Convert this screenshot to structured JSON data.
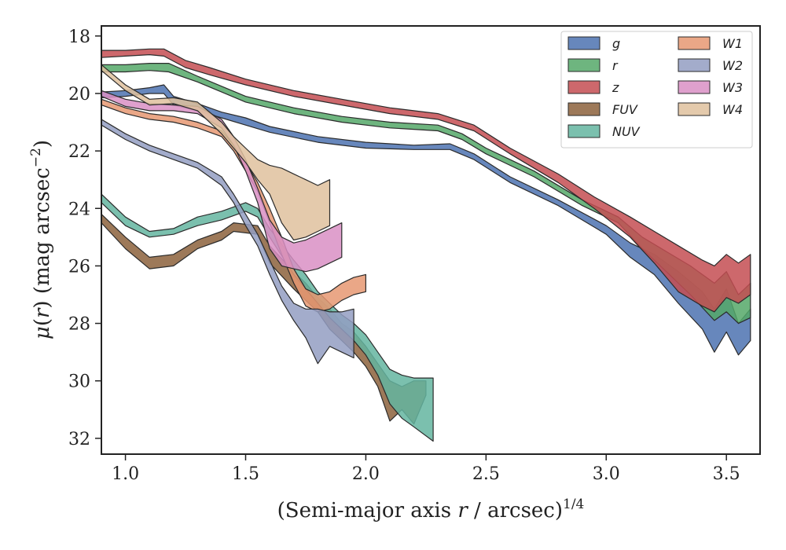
{
  "chart_data": {
    "type": "area",
    "xlabel": "(Semi-major axis r / arcsec)",
    "xlabel_parts": {
      "pre": "(Semi-major axis ",
      "var": "r",
      "post": " / arcsec)",
      "sup": "1/4"
    },
    "ylabel_parts": {
      "mu": "μ",
      "open": "(",
      "var": "r",
      "close": ")",
      "unit": " (mag arcsec",
      "sup": "−2",
      "end": ")"
    },
    "xlim": [
      0.9,
      3.64
    ],
    "ylim": [
      32.55,
      17.65
    ],
    "y_inverted": true,
    "x_ticks": [
      "1.0",
      "1.5",
      "2.0",
      "2.5",
      "3.0",
      "3.5"
    ],
    "y_ticks": [
      "18",
      "20",
      "22",
      "24",
      "26",
      "28",
      "30",
      "32"
    ],
    "grid": false,
    "legend": {
      "position": "top-right",
      "columns": 2
    },
    "series": [
      {
        "name": "g",
        "color": "#4c72b0",
        "x": [
          0.9,
          1.0,
          1.1,
          1.16,
          1.2,
          1.3,
          1.4,
          1.5,
          1.6,
          1.8,
          2.0,
          2.2,
          2.35,
          2.45,
          2.6,
          2.8,
          3.0,
          3.1,
          3.2,
          3.3,
          3.4,
          3.45,
          3.5,
          3.55,
          3.6
        ],
        "lower": [
          19.95,
          19.9,
          19.8,
          19.7,
          20.1,
          20.35,
          20.65,
          20.85,
          21.15,
          21.5,
          21.7,
          21.8,
          21.75,
          22.1,
          22.9,
          23.7,
          24.6,
          25.2,
          25.6,
          26.2,
          26.9,
          27.5,
          26.8,
          28.0,
          27.5
        ],
        "upper": [
          20.15,
          20.1,
          20.0,
          20.0,
          20.4,
          20.6,
          20.85,
          21.1,
          21.35,
          21.7,
          21.9,
          21.95,
          21.95,
          22.3,
          23.1,
          23.9,
          24.9,
          25.7,
          26.3,
          27.3,
          28.2,
          29.0,
          28.3,
          29.1,
          28.6
        ]
      },
      {
        "name": "r",
        "color": "#55a868",
        "x": [
          0.9,
          1.0,
          1.1,
          1.18,
          1.3,
          1.4,
          1.5,
          1.7,
          1.9,
          2.1,
          2.3,
          2.4,
          2.5,
          2.7,
          2.9,
          3.05,
          3.15,
          3.25,
          3.35,
          3.45,
          3.5,
          3.55,
          3.6
        ],
        "lower": [
          19.0,
          19.0,
          18.95,
          18.95,
          19.4,
          19.75,
          20.1,
          20.5,
          20.8,
          21.0,
          21.1,
          21.4,
          21.9,
          22.7,
          23.7,
          24.3,
          25.0,
          25.5,
          26.0,
          26.6,
          26.2,
          27.0,
          26.6
        ],
        "upper": [
          19.25,
          19.25,
          19.2,
          19.25,
          19.6,
          19.95,
          20.3,
          20.7,
          21.0,
          21.2,
          21.3,
          21.6,
          22.1,
          22.9,
          23.9,
          24.5,
          25.4,
          26.2,
          27.0,
          27.9,
          27.6,
          28.0,
          27.8
        ]
      },
      {
        "name": "z",
        "color": "#c44e52",
        "x": [
          0.9,
          1.0,
          1.1,
          1.16,
          1.25,
          1.35,
          1.5,
          1.7,
          1.9,
          2.1,
          2.3,
          2.45,
          2.6,
          2.8,
          2.95,
          3.1,
          3.2,
          3.3,
          3.4,
          3.45,
          3.5,
          3.55,
          3.6
        ],
        "lower": [
          18.5,
          18.5,
          18.45,
          18.45,
          18.85,
          19.1,
          19.5,
          19.9,
          20.2,
          20.5,
          20.7,
          21.1,
          21.9,
          22.8,
          23.6,
          24.3,
          24.8,
          25.3,
          25.8,
          26.0,
          25.6,
          25.9,
          25.6
        ],
        "upper": [
          18.75,
          18.7,
          18.65,
          18.7,
          19.1,
          19.35,
          19.7,
          20.1,
          20.4,
          20.7,
          20.9,
          21.3,
          22.1,
          23.1,
          24.0,
          25.0,
          25.9,
          26.9,
          27.4,
          27.6,
          27.1,
          27.3,
          27.0
        ]
      },
      {
        "name": "FUV",
        "color": "#8c613c",
        "x": [
          0.9,
          1.0,
          1.1,
          1.2,
          1.3,
          1.4,
          1.45,
          1.55,
          1.6,
          1.7,
          1.75,
          1.8,
          1.85,
          1.9,
          1.95,
          2.0,
          2.05,
          2.1,
          2.15,
          2.2,
          2.25
        ],
        "lower": [
          24.2,
          25.0,
          25.7,
          25.6,
          25.1,
          24.8,
          24.5,
          24.6,
          25.3,
          26.2,
          26.6,
          27.1,
          27.5,
          28.0,
          28.3,
          28.8,
          29.4,
          30.0,
          30.2,
          30.0,
          30.0
        ],
        "upper": [
          24.5,
          25.4,
          26.1,
          26.0,
          25.4,
          25.1,
          24.8,
          24.9,
          25.9,
          26.8,
          27.2,
          27.6,
          28.2,
          28.6,
          29.0,
          29.5,
          30.2,
          31.4,
          31.0,
          31.5,
          30.5
        ]
      },
      {
        "name": "NUV",
        "color": "#64b5a0",
        "x": [
          0.9,
          1.0,
          1.1,
          1.2,
          1.3,
          1.4,
          1.5,
          1.55,
          1.6,
          1.7,
          1.75,
          1.8,
          1.85,
          1.9,
          1.95,
          2.0,
          2.05,
          2.1,
          2.15,
          2.2,
          2.28
        ],
        "lower": [
          23.5,
          24.3,
          24.8,
          24.7,
          24.3,
          24.1,
          23.8,
          24.0,
          24.7,
          25.8,
          26.3,
          26.9,
          27.3,
          27.7,
          28.0,
          28.4,
          29.0,
          29.6,
          29.8,
          29.9,
          29.9
        ],
        "upper": [
          23.8,
          24.6,
          25.0,
          24.9,
          24.6,
          24.4,
          24.1,
          24.3,
          25.0,
          26.3,
          26.8,
          27.3,
          27.8,
          28.2,
          28.6,
          29.1,
          29.8,
          30.8,
          31.3,
          31.6,
          32.1
        ]
      },
      {
        "name": "W1",
        "color": "#e69872",
        "x": [
          0.9,
          1.0,
          1.1,
          1.2,
          1.3,
          1.4,
          1.45,
          1.5,
          1.55,
          1.6,
          1.65,
          1.7,
          1.75,
          1.8,
          1.85,
          1.9,
          1.95,
          2.0
        ],
        "lower": [
          20.2,
          20.5,
          20.7,
          20.8,
          21.0,
          21.3,
          21.8,
          22.4,
          23.1,
          24.0,
          25.0,
          26.1,
          26.8,
          27.0,
          26.9,
          26.6,
          26.4,
          26.3
        ],
        "upper": [
          20.4,
          20.7,
          20.9,
          21.0,
          21.2,
          21.5,
          22.0,
          22.7,
          23.4,
          24.5,
          25.6,
          26.6,
          27.4,
          27.6,
          27.5,
          27.2,
          27.0,
          26.9
        ]
      },
      {
        "name": "W2",
        "color": "#939dc2",
        "x": [
          0.9,
          1.0,
          1.1,
          1.2,
          1.3,
          1.4,
          1.45,
          1.5,
          1.55,
          1.6,
          1.65,
          1.7,
          1.75,
          1.8,
          1.85,
          1.9,
          1.95
        ],
        "lower": [
          20.9,
          21.4,
          21.8,
          22.1,
          22.4,
          22.9,
          23.5,
          24.2,
          24.9,
          25.8,
          26.7,
          27.3,
          27.5,
          27.5,
          27.6,
          27.6,
          27.5
        ],
        "upper": [
          21.1,
          21.6,
          22.0,
          22.3,
          22.6,
          23.2,
          23.8,
          24.6,
          25.3,
          26.3,
          27.2,
          27.9,
          28.5,
          29.4,
          28.8,
          29.0,
          29.2
        ]
      },
      {
        "name": "W3",
        "color": "#d98fc4",
        "x": [
          0.9,
          1.0,
          1.1,
          1.2,
          1.3,
          1.4,
          1.45,
          1.5,
          1.55,
          1.6,
          1.65,
          1.7,
          1.75,
          1.8,
          1.85,
          1.9
        ],
        "lower": [
          19.9,
          20.2,
          20.35,
          20.4,
          20.45,
          20.9,
          21.5,
          22.3,
          23.3,
          24.4,
          25.0,
          25.2,
          25.1,
          24.9,
          24.7,
          24.5
        ],
        "upper": [
          20.1,
          20.45,
          20.6,
          20.6,
          20.7,
          21.2,
          21.8,
          22.7,
          23.8,
          25.4,
          26.0,
          26.1,
          26.2,
          26.1,
          25.9,
          25.7
        ]
      },
      {
        "name": "W4",
        "color": "#dfc19d",
        "x": [
          0.9,
          1.0,
          1.1,
          1.2,
          1.3,
          1.4,
          1.45,
          1.5,
          1.55,
          1.6,
          1.65,
          1.7,
          1.75,
          1.8,
          1.85
        ],
        "lower": [
          19.0,
          19.7,
          20.2,
          20.15,
          20.3,
          21.0,
          21.5,
          21.9,
          22.3,
          22.5,
          22.6,
          22.8,
          23.0,
          23.2,
          23.0
        ],
        "upper": [
          19.2,
          19.9,
          20.4,
          20.35,
          20.6,
          21.4,
          21.9,
          22.4,
          23.0,
          23.5,
          24.5,
          25.1,
          25.0,
          24.8,
          24.6
        ]
      }
    ]
  }
}
